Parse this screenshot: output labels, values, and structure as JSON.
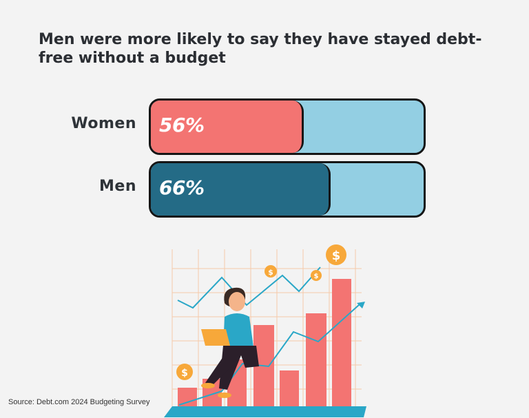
{
  "chart_data": {
    "type": "bar",
    "orientation": "horizontal",
    "title": "Men were more likely to say they have stayed debt-free without a budget",
    "categories": [
      "Women",
      "Men"
    ],
    "values": [
      56,
      66
    ],
    "value_labels": [
      "56%",
      "66%"
    ],
    "unit": "%",
    "xlim": [
      0,
      100
    ],
    "colors": {
      "Women": "#f37472",
      "Men": "#246b86",
      "track": "#93cfe3"
    },
    "grid": false,
    "legend": "none"
  },
  "source": "Source: Debt.com 2024 Budgeting Survey",
  "illustration": {
    "icons": [
      "dollar-coin-icon",
      "person-with-laptop",
      "trend-arrow-icon"
    ],
    "accent_colors": [
      "#f37472",
      "#2aa7c7",
      "#f7a83a"
    ]
  }
}
